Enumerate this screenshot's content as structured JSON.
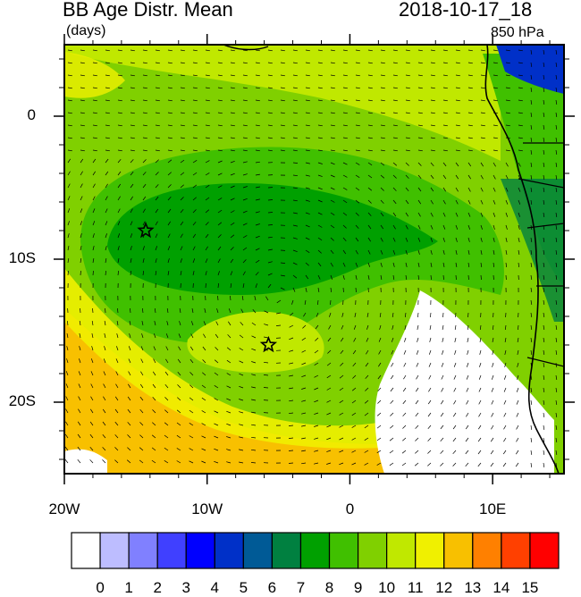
{
  "title_left": "BB Age Distr. Mean",
  "units": "(days)",
  "title_right": "2018-10-17_18",
  "level": "850 hPa",
  "lon_ticks": [
    {
      "value": -20,
      "label": "20W"
    },
    {
      "value": -10,
      "label": "10W"
    },
    {
      "value": 0,
      "label": "0"
    },
    {
      "value": 10,
      "label": "10E"
    }
  ],
  "lat_ticks": [
    {
      "value": 0,
      "label": "0"
    },
    {
      "value": -10,
      "label": "10S"
    },
    {
      "value": -20,
      "label": "20S"
    }
  ],
  "map_extent": {
    "lon": [
      -20,
      15
    ],
    "lat": [
      -25,
      5
    ]
  },
  "markers": [
    {
      "name": "star-marker",
      "lon": -14.3,
      "lat": -8.0
    },
    {
      "name": "star-marker",
      "lon": -5.7,
      "lat": -16.0
    }
  ],
  "colorbar": {
    "labels": [
      "0",
      "1",
      "2",
      "3",
      "4",
      "5",
      "6",
      "7",
      "8",
      "9",
      "10",
      "11",
      "12",
      "13",
      "14",
      "15"
    ],
    "colors": [
      "#ffffff",
      "#bdbdff",
      "#8080ff",
      "#4040ff",
      "#0000ff",
      "#0030c8",
      "#005a96",
      "#008040",
      "#00a000",
      "#40c000",
      "#80d000",
      "#c0e800",
      "#f0f000",
      "#f8c000",
      "#ff8000",
      "#ff4000",
      "#ff0000"
    ]
  },
  "palette": {
    "ocean_green_dark": "#00a000",
    "green": "#40c000",
    "light_green": "#80d000",
    "yellow_green": "#c0e800",
    "yellow": "#f0f000",
    "orange": "#f8c000",
    "white": "#ffffff",
    "teal": "#008040",
    "blue": "#0030c8"
  }
}
